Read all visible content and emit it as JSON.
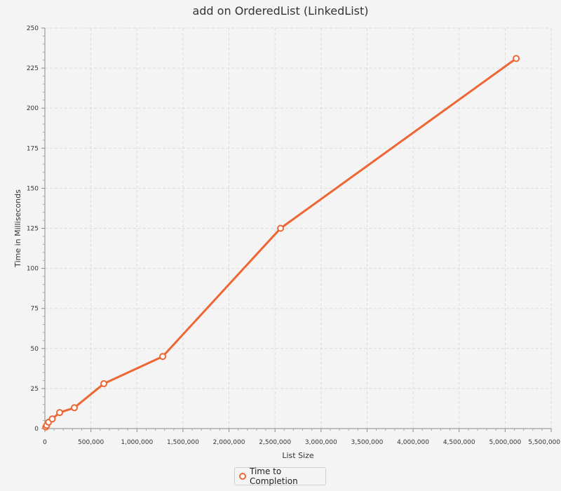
{
  "chart_data": {
    "type": "line",
    "title": "add on OrderedList (LinkedList)",
    "xlabel": "List Size",
    "ylabel": "Time in Milliseconds",
    "xlim": [
      0,
      5500000
    ],
    "ylim": [
      0,
      250
    ],
    "x_ticks": [
      0,
      500000,
      1000000,
      1500000,
      2000000,
      2500000,
      3000000,
      3500000,
      4000000,
      4500000,
      5000000,
      5500000
    ],
    "x_tick_labels": [
      "0",
      "500,000",
      "1,000,000",
      "1,500,000",
      "2,000,000",
      "2,500,000",
      "3,000,000",
      "3,500,000",
      "4,000,000",
      "4,500,000",
      "5,000,000",
      "5,500,000"
    ],
    "y_ticks": [
      0,
      25,
      50,
      75,
      100,
      125,
      150,
      175,
      200,
      225,
      250
    ],
    "y_tick_labels": [
      "0",
      "25",
      "50",
      "75",
      "100",
      "125",
      "150",
      "175",
      "200",
      "225",
      "250"
    ],
    "grid": true,
    "legend_position": "bottom-center",
    "series": [
      {
        "name": "Time to Completion",
        "color": "#ee6633",
        "x": [
          10000,
          20000,
          40000,
          80000,
          160000,
          320000,
          640000,
          1280000,
          2560000,
          5120000
        ],
        "y": [
          1,
          2,
          4,
          6,
          10,
          13,
          28,
          45,
          125,
          231
        ]
      }
    ]
  }
}
